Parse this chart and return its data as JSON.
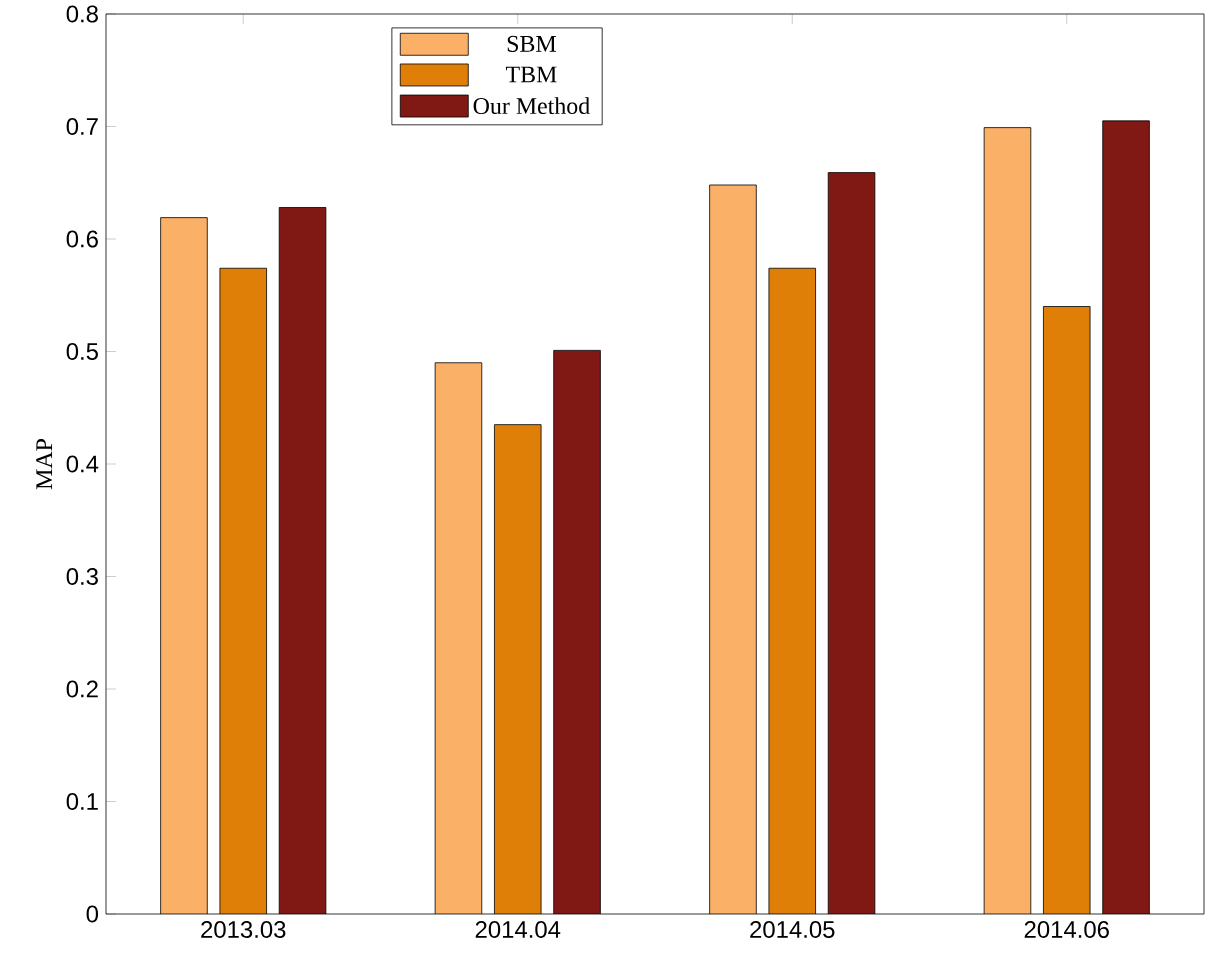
{
  "chart_data": {
    "type": "bar",
    "ylabel": "MAP",
    "categories": [
      "2013.03",
      "2014.04",
      "2014.05",
      "2014.06"
    ],
    "series": [
      {
        "name": "SBM",
        "color": "#fbb068",
        "values": [
          0.619,
          0.49,
          0.648,
          0.699
        ]
      },
      {
        "name": "TBM",
        "color": "#e07f08",
        "values": [
          0.574,
          0.435,
          0.574,
          0.54
        ]
      },
      {
        "name": "Our Method",
        "color": "#801914",
        "values": [
          0.628,
          0.501,
          0.659,
          0.705
        ]
      }
    ],
    "ylim": [
      0,
      0.8
    ],
    "yticks": [
      0,
      0.1,
      0.2,
      0.3,
      0.4,
      0.5,
      0.6,
      0.7,
      0.8
    ],
    "legend": "top left"
  }
}
